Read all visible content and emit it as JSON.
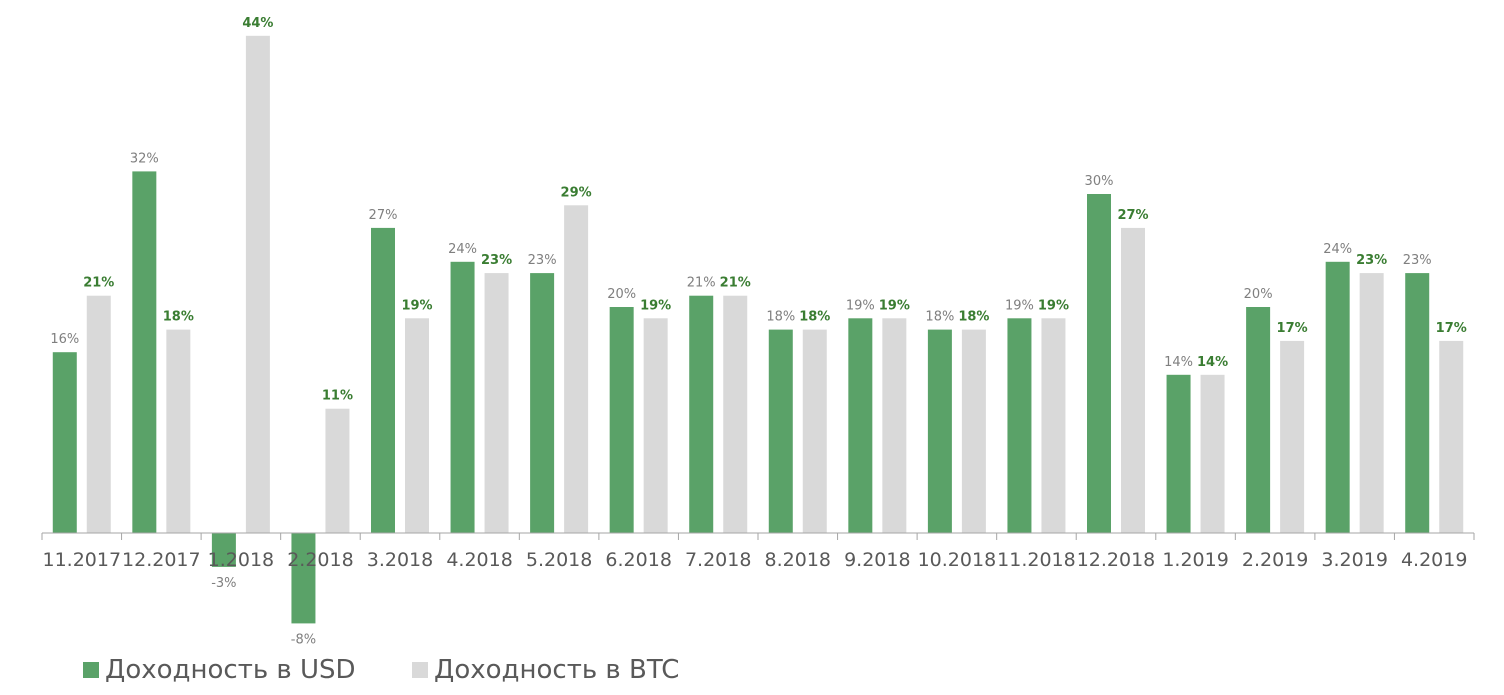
{
  "chart_data": {
    "type": "bar",
    "categories": [
      "11.2017",
      "12.2017",
      "1.2018",
      "2.2018",
      "3.2018",
      "4.2018",
      "5.2018",
      "6.2018",
      "7.2018",
      "8.2018",
      "9.2018",
      "10.2018",
      "11.2018",
      "12.2018",
      "1.2019",
      "2.2019",
      "3.2019",
      "4.2019"
    ],
    "series": [
      {
        "name": "Доходность в USD",
        "color": "#5aa268",
        "label_color": "#7f7f7f",
        "values": [
          16,
          32,
          -3,
          -8,
          27,
          24,
          23,
          20,
          21,
          18,
          19,
          18,
          19,
          30,
          14,
          20,
          24,
          23
        ],
        "labels": [
          "16%",
          "32%",
          "-3%",
          "-8%",
          "27%",
          "24%",
          "23%",
          "20%",
          "21%",
          "18%",
          "19%",
          "18%",
          "19%",
          "30%",
          "14%",
          "20%",
          "24%",
          "23%"
        ]
      },
      {
        "name": "Доходность в BTC",
        "color": "#d9d9d9",
        "label_color": "#3a7d32",
        "values": [
          21,
          18,
          44,
          11,
          19,
          23,
          29,
          19,
          21,
          18,
          19,
          18,
          19,
          27,
          14,
          17,
          23,
          17
        ],
        "labels": [
          "21%",
          "18%",
          "44%",
          "11%",
          "19%",
          "23%",
          "29%",
          "19%",
          "21%",
          "18%",
          "19%",
          "18%",
          "19%",
          "27%",
          "14%",
          "17%",
          "23%",
          "17%"
        ]
      }
    ],
    "title": "",
    "xlabel": "",
    "ylabel": "",
    "ylim": [
      -9,
      46
    ],
    "grid": false,
    "legend": "bottom-left"
  }
}
